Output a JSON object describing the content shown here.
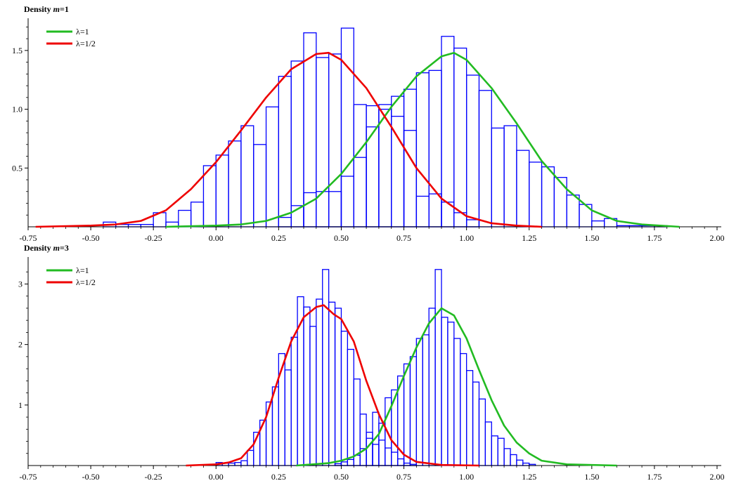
{
  "chart_data": [
    {
      "type": "histogram-with-lines",
      "title_prefix": "Density",
      "title_var": "m",
      "title_suffix": "=1",
      "xlim": [
        -0.75,
        2.0
      ],
      "ylim": [
        0,
        1.75
      ],
      "xticks": [
        -0.75,
        -0.5,
        -0.25,
        0.0,
        0.25,
        0.5,
        0.75,
        1.0,
        1.25,
        1.5,
        1.75,
        2.0
      ],
      "xtick_labels": [
        "-0.75",
        "-0.50",
        "-0.25",
        "0.00",
        "0.25",
        "0.50",
        "0.75",
        "1.00",
        "1.25",
        "1.50",
        "1.75",
        "2.00"
      ],
      "yticks": [
        0.5,
        1.0,
        1.5
      ],
      "ytick_labels": [
        "0.5",
        "1.0",
        "1.5"
      ],
      "bar_color": "#0000ff",
      "histograms": [
        {
          "bin_width": 0.05,
          "bins": [
            {
              "x0": -0.45,
              "h": 0.04
            },
            {
              "x0": -0.4,
              "h": 0.02
            },
            {
              "x0": -0.35,
              "h": 0.02
            },
            {
              "x0": -0.3,
              "h": 0.02
            },
            {
              "x0": -0.25,
              "h": 0.12
            },
            {
              "x0": -0.2,
              "h": 0.04
            },
            {
              "x0": -0.15,
              "h": 0.14
            },
            {
              "x0": -0.1,
              "h": 0.21
            },
            {
              "x0": -0.05,
              "h": 0.52
            },
            {
              "x0": 0.0,
              "h": 0.61
            },
            {
              "x0": 0.05,
              "h": 0.73
            },
            {
              "x0": 0.1,
              "h": 0.86
            },
            {
              "x0": 0.15,
              "h": 0.7
            },
            {
              "x0": 0.2,
              "h": 1.02
            },
            {
              "x0": 0.25,
              "h": 1.28
            },
            {
              "x0": 0.3,
              "h": 1.41
            },
            {
              "x0": 0.35,
              "h": 1.65
            },
            {
              "x0": 0.4,
              "h": 1.44
            },
            {
              "x0": 0.45,
              "h": 1.47
            },
            {
              "x0": 0.5,
              "h": 1.69
            },
            {
              "x0": 0.55,
              "h": 1.04
            },
            {
              "x0": 0.6,
              "h": 1.03
            },
            {
              "x0": 0.65,
              "h": 1.04
            },
            {
              "x0": 0.7,
              "h": 0.94
            },
            {
              "x0": 0.75,
              "h": 0.82
            },
            {
              "x0": 0.8,
              "h": 0.26
            },
            {
              "x0": 0.85,
              "h": 0.28
            },
            {
              "x0": 0.9,
              "h": 0.21
            },
            {
              "x0": 0.95,
              "h": 0.12
            },
            {
              "x0": 1.0,
              "h": 0.06
            }
          ]
        },
        {
          "bin_width": 0.05,
          "bins": [
            {
              "x0": 0.25,
              "h": 0.08
            },
            {
              "x0": 0.3,
              "h": 0.18
            },
            {
              "x0": 0.35,
              "h": 0.29
            },
            {
              "x0": 0.4,
              "h": 0.3
            },
            {
              "x0": 0.45,
              "h": 0.3
            },
            {
              "x0": 0.5,
              "h": 0.43
            },
            {
              "x0": 0.55,
              "h": 0.59
            },
            {
              "x0": 0.6,
              "h": 0.85
            },
            {
              "x0": 0.65,
              "h": 1.0
            },
            {
              "x0": 0.7,
              "h": 1.11
            },
            {
              "x0": 0.75,
              "h": 1.17
            },
            {
              "x0": 0.8,
              "h": 1.31
            },
            {
              "x0": 0.85,
              "h": 1.33
            },
            {
              "x0": 0.9,
              "h": 1.62
            },
            {
              "x0": 0.95,
              "h": 1.52
            },
            {
              "x0": 1.0,
              "h": 1.29
            },
            {
              "x0": 1.05,
              "h": 1.16
            },
            {
              "x0": 1.1,
              "h": 0.84
            },
            {
              "x0": 1.15,
              "h": 0.86
            },
            {
              "x0": 1.2,
              "h": 0.65
            },
            {
              "x0": 1.25,
              "h": 0.55
            },
            {
              "x0": 1.3,
              "h": 0.51
            },
            {
              "x0": 1.35,
              "h": 0.42
            },
            {
              "x0": 1.4,
              "h": 0.27
            },
            {
              "x0": 1.45,
              "h": 0.19
            },
            {
              "x0": 1.5,
              "h": 0.05
            },
            {
              "x0": 1.55,
              "h": 0.07
            },
            {
              "x0": 1.6,
              "h": 0.01
            },
            {
              "x0": 1.65,
              "h": 0.01
            },
            {
              "x0": 1.7,
              "h": 0.01
            },
            {
              "x0": 1.75,
              "h": 0.01
            }
          ]
        }
      ],
      "series": [
        {
          "name": "λ=1",
          "color": "#22bb22",
          "x": [
            -0.2,
            0.0,
            0.1,
            0.2,
            0.3,
            0.4,
            0.5,
            0.6,
            0.7,
            0.8,
            0.9,
            0.95,
            1.0,
            1.1,
            1.2,
            1.3,
            1.4,
            1.5,
            1.6,
            1.7,
            1.85
          ],
          "y": [
            0.0,
            0.01,
            0.02,
            0.05,
            0.12,
            0.24,
            0.45,
            0.72,
            1.02,
            1.28,
            1.45,
            1.48,
            1.42,
            1.18,
            0.88,
            0.56,
            0.32,
            0.14,
            0.05,
            0.02,
            0.0
          ]
        },
        {
          "name": "λ=1/2",
          "color": "#ee0000",
          "x": [
            -0.72,
            -0.5,
            -0.4,
            -0.3,
            -0.2,
            -0.1,
            0.0,
            0.1,
            0.2,
            0.3,
            0.4,
            0.45,
            0.5,
            0.6,
            0.7,
            0.8,
            0.9,
            1.0,
            1.1,
            1.2,
            1.3
          ],
          "y": [
            0.0,
            0.01,
            0.02,
            0.05,
            0.14,
            0.32,
            0.55,
            0.82,
            1.1,
            1.34,
            1.47,
            1.48,
            1.42,
            1.18,
            0.85,
            0.5,
            0.24,
            0.09,
            0.03,
            0.01,
            0.0
          ]
        }
      ]
    },
    {
      "type": "histogram-with-lines",
      "title_prefix": "Density",
      "title_var": "m",
      "title_suffix": "=3",
      "xlim": [
        -0.75,
        2.0
      ],
      "ylim": [
        0,
        3.4
      ],
      "xticks": [
        -0.75,
        -0.5,
        -0.25,
        0.0,
        0.25,
        0.5,
        0.75,
        1.0,
        1.25,
        1.5,
        1.75,
        2.0
      ],
      "xtick_labels": [
        "-0.75",
        "-0.50",
        "-0.25",
        "0.00",
        "0.25",
        "0.50",
        "0.75",
        "1.00",
        "1.25",
        "1.50",
        "1.75",
        "2.00"
      ],
      "yticks": [
        1,
        2,
        3
      ],
      "ytick_labels": [
        "1",
        "2",
        "3"
      ],
      "bar_color": "#0000ff",
      "histograms": [
        {
          "bin_width": 0.025,
          "bins": [
            {
              "x0": 0.0,
              "h": 0.05
            },
            {
              "x0": 0.025,
              "h": 0.04
            },
            {
              "x0": 0.05,
              "h": 0.04
            },
            {
              "x0": 0.075,
              "h": 0.05
            },
            {
              "x0": 0.1,
              "h": 0.08
            },
            {
              "x0": 0.125,
              "h": 0.25
            },
            {
              "x0": 0.15,
              "h": 0.55
            },
            {
              "x0": 0.175,
              "h": 0.75
            },
            {
              "x0": 0.2,
              "h": 1.05
            },
            {
              "x0": 0.225,
              "h": 1.3
            },
            {
              "x0": 0.25,
              "h": 1.85
            },
            {
              "x0": 0.275,
              "h": 1.58
            },
            {
              "x0": 0.3,
              "h": 2.12
            },
            {
              "x0": 0.325,
              "h": 2.79
            },
            {
              "x0": 0.35,
              "h": 2.62
            },
            {
              "x0": 0.375,
              "h": 2.3
            },
            {
              "x0": 0.4,
              "h": 2.75
            },
            {
              "x0": 0.425,
              "h": 3.24
            },
            {
              "x0": 0.45,
              "h": 2.7
            },
            {
              "x0": 0.475,
              "h": 2.6
            },
            {
              "x0": 0.5,
              "h": 2.22
            },
            {
              "x0": 0.525,
              "h": 1.92
            },
            {
              "x0": 0.55,
              "h": 1.43
            },
            {
              "x0": 0.575,
              "h": 0.85
            },
            {
              "x0": 0.6,
              "h": 0.55
            },
            {
              "x0": 0.625,
              "h": 0.35
            },
            {
              "x0": 0.65,
              "h": 0.42
            },
            {
              "x0": 0.675,
              "h": 0.29
            },
            {
              "x0": 0.7,
              "h": 0.22
            },
            {
              "x0": 0.725,
              "h": 0.11
            },
            {
              "x0": 0.75,
              "h": 0.04
            },
            {
              "x0": 0.775,
              "h": 0.02
            }
          ]
        },
        {
          "bin_width": 0.025,
          "bins": [
            {
              "x0": 0.475,
              "h": 0.03
            },
            {
              "x0": 0.5,
              "h": 0.06
            },
            {
              "x0": 0.525,
              "h": 0.1
            },
            {
              "x0": 0.55,
              "h": 0.17
            },
            {
              "x0": 0.575,
              "h": 0.28
            },
            {
              "x0": 0.6,
              "h": 0.45
            },
            {
              "x0": 0.625,
              "h": 0.88
            },
            {
              "x0": 0.65,
              "h": 0.7
            },
            {
              "x0": 0.675,
              "h": 1.12
            },
            {
              "x0": 0.7,
              "h": 1.25
            },
            {
              "x0": 0.725,
              "h": 1.48
            },
            {
              "x0": 0.75,
              "h": 1.68
            },
            {
              "x0": 0.775,
              "h": 1.8
            },
            {
              "x0": 0.8,
              "h": 2.1
            },
            {
              "x0": 0.825,
              "h": 2.16
            },
            {
              "x0": 0.85,
              "h": 2.6
            },
            {
              "x0": 0.875,
              "h": 3.24
            },
            {
              "x0": 0.9,
              "h": 2.45
            },
            {
              "x0": 0.925,
              "h": 2.37
            },
            {
              "x0": 0.95,
              "h": 2.1
            },
            {
              "x0": 0.975,
              "h": 1.85
            },
            {
              "x0": 1.0,
              "h": 1.57
            },
            {
              "x0": 1.025,
              "h": 1.38
            },
            {
              "x0": 1.05,
              "h": 1.1
            },
            {
              "x0": 1.075,
              "h": 0.72
            },
            {
              "x0": 1.1,
              "h": 0.49
            },
            {
              "x0": 1.125,
              "h": 0.45
            },
            {
              "x0": 1.15,
              "h": 0.28
            },
            {
              "x0": 1.175,
              "h": 0.18
            },
            {
              "x0": 1.2,
              "h": 0.09
            },
            {
              "x0": 1.225,
              "h": 0.04
            },
            {
              "x0": 1.25,
              "h": 0.02
            }
          ]
        }
      ],
      "series": [
        {
          "name": "λ=1",
          "color": "#22bb22",
          "x": [
            0.32,
            0.45,
            0.5,
            0.55,
            0.6,
            0.65,
            0.7,
            0.75,
            0.8,
            0.85,
            0.9,
            0.95,
            1.0,
            1.05,
            1.1,
            1.15,
            1.2,
            1.25,
            1.3,
            1.4,
            1.6
          ],
          "y": [
            0.0,
            0.04,
            0.08,
            0.15,
            0.28,
            0.52,
            0.98,
            1.48,
            1.95,
            2.35,
            2.6,
            2.48,
            2.1,
            1.58,
            1.08,
            0.66,
            0.38,
            0.2,
            0.08,
            0.02,
            0.0
          ]
        },
        {
          "name": "λ=1/2",
          "color": "#ee0000",
          "x": [
            -0.12,
            0.0,
            0.05,
            0.1,
            0.15,
            0.2,
            0.25,
            0.3,
            0.35,
            0.4,
            0.43,
            0.47,
            0.5,
            0.55,
            0.6,
            0.65,
            0.7,
            0.75,
            0.8,
            0.9,
            1.05
          ],
          "y": [
            0.0,
            0.02,
            0.05,
            0.12,
            0.35,
            0.8,
            1.45,
            2.05,
            2.45,
            2.62,
            2.65,
            2.5,
            2.42,
            2.05,
            1.4,
            0.85,
            0.42,
            0.18,
            0.06,
            0.01,
            0.0
          ]
        }
      ]
    }
  ]
}
